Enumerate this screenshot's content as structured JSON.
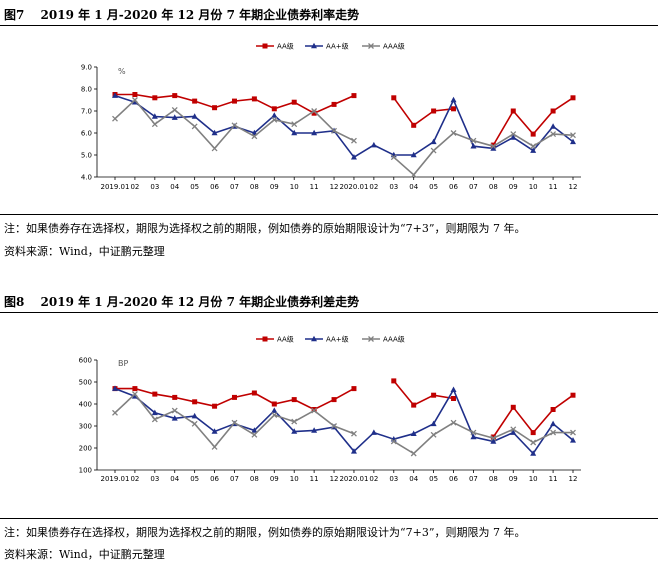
{
  "figures": [
    {
      "title": "图7　 2019 年 1 月-2020 年 12 月份 7 年期企业债券利率走势",
      "note": "注：如果债券存在选择权，期限为选择权之前的期限，例如债券的原始期限设计为“7+3”，则期限为 7 年。",
      "source": "资料来源：Wind，中证鹏元整理"
    },
    {
      "title": "图8　 2019 年 1 月-2020 年 12 月份 7 年期企业债券利差走势",
      "note": "注：如果债券存在选择权，期限为选择权之前的期限，例如债券的原始期限设计为“7+3”，则期限为 7 年。",
      "source": "资料来源：Wind，中证鹏元整理"
    }
  ],
  "chart_data": [
    {
      "type": "line",
      "unit_label": "%",
      "ylim": [
        4.0,
        9.0
      ],
      "yticks": [
        "4.0",
        "5.0",
        "6.0",
        "7.0",
        "8.0",
        "9.0"
      ],
      "categories": [
        "2019.01",
        "02",
        "03",
        "04",
        "05",
        "06",
        "07",
        "08",
        "09",
        "10",
        "11",
        "12",
        "2020.01",
        "02",
        "03",
        "04",
        "05",
        "06",
        "07",
        "08",
        "09",
        "10",
        "11",
        "12"
      ],
      "legend": "top-center",
      "grid": false,
      "series": [
        {
          "name": "AA级",
          "color": "#C00000",
          "marker": "square",
          "values": [
            7.75,
            7.75,
            7.6,
            7.7,
            7.45,
            7.15,
            7.45,
            7.55,
            7.1,
            7.4,
            6.9,
            7.3,
            7.7,
            null,
            7.6,
            6.35,
            7.0,
            7.1,
            null,
            5.45,
            7.0,
            5.95,
            7.0,
            7.6
          ]
        },
        {
          "name": "AA+级",
          "color": "#1F2F8A",
          "marker": "triangle",
          "values": [
            7.7,
            7.4,
            6.75,
            6.7,
            6.75,
            6.0,
            6.3,
            6.0,
            6.8,
            6.0,
            6.0,
            6.1,
            4.9,
            5.45,
            5.0,
            5.0,
            5.6,
            7.5,
            5.4,
            5.3,
            5.8,
            5.2,
            6.3,
            5.6
          ]
        },
        {
          "name": "AAA级",
          "color": "#808080",
          "marker": "x",
          "values": [
            6.65,
            7.5,
            6.4,
            7.05,
            6.3,
            5.3,
            6.35,
            5.85,
            6.6,
            6.4,
            7.0,
            6.1,
            5.65,
            null,
            4.9,
            4.1,
            5.2,
            6.0,
            5.65,
            5.4,
            5.95,
            5.4,
            5.95,
            5.9
          ]
        }
      ]
    },
    {
      "type": "line",
      "unit_label": "BP",
      "ylim": [
        100,
        600
      ],
      "yticks": [
        "100",
        "200",
        "300",
        "400",
        "500",
        "600"
      ],
      "categories": [
        "2019.01",
        "02",
        "03",
        "04",
        "05",
        "06",
        "07",
        "08",
        "09",
        "10",
        "11",
        "12",
        "2020.01",
        "02",
        "03",
        "04",
        "05",
        "06",
        "07",
        "08",
        "09",
        "10",
        "11",
        "12"
      ],
      "legend": "top-center",
      "grid": false,
      "series": [
        {
          "name": "AA级",
          "color": "#C00000",
          "marker": "square",
          "values": [
            470,
            470,
            445,
            430,
            410,
            390,
            430,
            450,
            400,
            420,
            375,
            420,
            470,
            null,
            505,
            395,
            440,
            425,
            null,
            250,
            385,
            270,
            375,
            440
          ]
        },
        {
          "name": "AA+级",
          "color": "#1F2F8A",
          "marker": "triangle",
          "values": [
            470,
            435,
            360,
            335,
            345,
            275,
            310,
            280,
            370,
            275,
            280,
            295,
            185,
            270,
            240,
            265,
            310,
            465,
            250,
            230,
            270,
            175,
            310,
            235
          ]
        },
        {
          "name": "AAA级",
          "color": "#808080",
          "marker": "x",
          "values": [
            360,
            445,
            330,
            370,
            310,
            205,
            315,
            260,
            350,
            320,
            370,
            300,
            265,
            null,
            230,
            175,
            260,
            315,
            270,
            245,
            285,
            225,
            270,
            270
          ]
        }
      ]
    }
  ]
}
